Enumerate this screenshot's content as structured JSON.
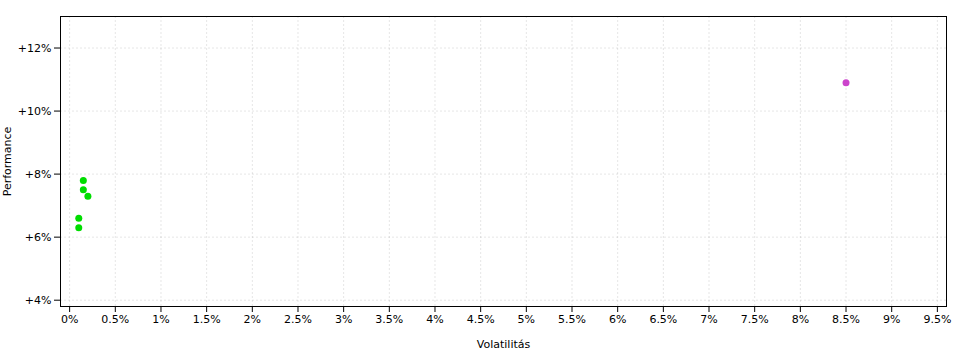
{
  "chart_data": {
    "type": "scatter",
    "xlabel": "Volatilitás",
    "ylabel": "Performance",
    "xlim": [
      -0.001,
      0.096
    ],
    "ylim": [
      0.038,
      0.13
    ],
    "xticks": [
      {
        "value": 0.0,
        "label": "0%"
      },
      {
        "value": 0.005,
        "label": "0.5%"
      },
      {
        "value": 0.01,
        "label": "1%"
      },
      {
        "value": 0.015,
        "label": "1.5%"
      },
      {
        "value": 0.02,
        "label": "2%"
      },
      {
        "value": 0.025,
        "label": "2.5%"
      },
      {
        "value": 0.03,
        "label": "3%"
      },
      {
        "value": 0.035,
        "label": "3.5%"
      },
      {
        "value": 0.04,
        "label": "4%"
      },
      {
        "value": 0.045,
        "label": "4.5%"
      },
      {
        "value": 0.05,
        "label": "5%"
      },
      {
        "value": 0.055,
        "label": "5.5%"
      },
      {
        "value": 0.06,
        "label": "6%"
      },
      {
        "value": 0.065,
        "label": "6.5%"
      },
      {
        "value": 0.07,
        "label": "7%"
      },
      {
        "value": 0.075,
        "label": "7.5%"
      },
      {
        "value": 0.08,
        "label": "8%"
      },
      {
        "value": 0.085,
        "label": "8.5%"
      },
      {
        "value": 0.09,
        "label": "9%"
      },
      {
        "value": 0.095,
        "label": "9.5%"
      }
    ],
    "yticks": [
      {
        "value": 0.04,
        "label": "+4%"
      },
      {
        "value": 0.06,
        "label": "+6%"
      },
      {
        "value": 0.08,
        "label": "+8%"
      },
      {
        "value": 0.1,
        "label": "+10%"
      },
      {
        "value": 0.12,
        "label": "+12%"
      }
    ],
    "grid": true,
    "series": [
      {
        "color": "#00dd00",
        "x": [
          0.0015,
          0.0015,
          0.002,
          0.001,
          0.001
        ],
        "values": [
          0.078,
          0.075,
          0.073,
          0.066,
          0.063
        ]
      },
      {
        "color": "#cc44cc",
        "x": [
          0.085
        ],
        "values": [
          0.109
        ]
      }
    ]
  }
}
